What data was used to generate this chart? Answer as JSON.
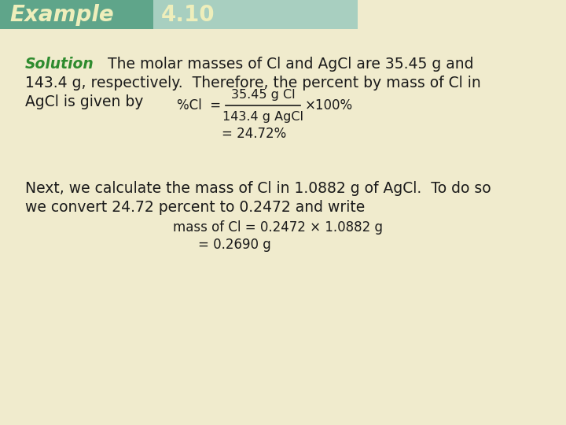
{
  "bg_color": "#f0ebcd",
  "header_bg_color1": "#5fa58a",
  "header_bg_color2": "#a8cfc0",
  "header_text_example": "Example",
  "header_text_number": "4.10",
  "header_text_color": "#eeeebb",
  "solution_label": "Solution",
  "solution_color": "#2e8b2e",
  "body_text_color": "#1a1a1a",
  "line1": "The molar masses of Cl and AgCl are 35.45 g and",
  "line2": "143.4 g, respectively.  Therefore, the percent by mass of Cl in",
  "line3": "AgCl is given by",
  "formula_pct": "%Cl  =",
  "formula_numerator": "35.45 g Cl",
  "formula_denominator": "143.4 g AgCl",
  "formula_times": "×100%",
  "formula_result1": "= 24.72%",
  "next_line1": "Next, we calculate the mass of Cl in 1.0882 g of AgCl.  To do so",
  "next_line2": "we convert 24.72 percent to 0.2472 and write",
  "formula2_label": "mass of Cl = 0.2472 × 1.0882 g",
  "formula2_result": "= 0.2690 g"
}
